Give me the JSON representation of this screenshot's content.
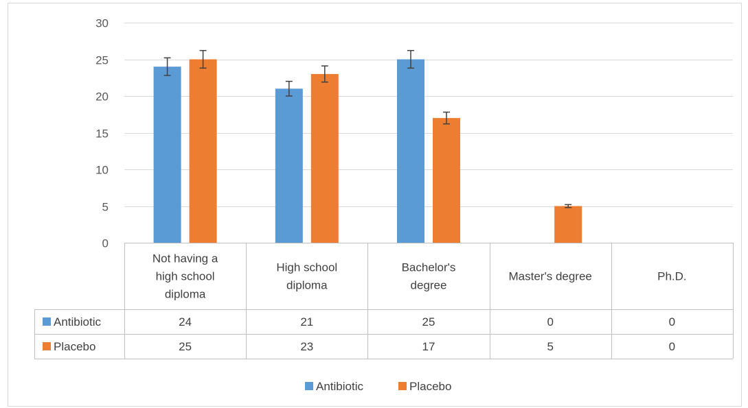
{
  "chart_data": {
    "type": "bar",
    "categories": [
      [
        "Not having a",
        "high school",
        "diploma"
      ],
      [
        "High school",
        "diploma"
      ],
      [
        "Bachelor's",
        "degree"
      ],
      [
        "Master's degree"
      ],
      [
        "Ph.D."
      ]
    ],
    "series": [
      {
        "name": "Antibiotic",
        "color": "#5B9BD5",
        "values": [
          24,
          21,
          25,
          0,
          0
        ],
        "error": [
          1.2,
          1.0,
          1.2,
          0,
          0
        ]
      },
      {
        "name": "Placebo",
        "color": "#ED7D31",
        "values": [
          25,
          23,
          17,
          5,
          0
        ],
        "error": [
          1.2,
          1.1,
          0.8,
          0.2,
          0
        ]
      }
    ],
    "y_ticks": [
      "0",
      "5",
      "10",
      "15",
      "20",
      "25",
      "30"
    ],
    "ylim": [
      0,
      30
    ],
    "grid": true,
    "data_table": true,
    "legend_position": "bottom"
  }
}
